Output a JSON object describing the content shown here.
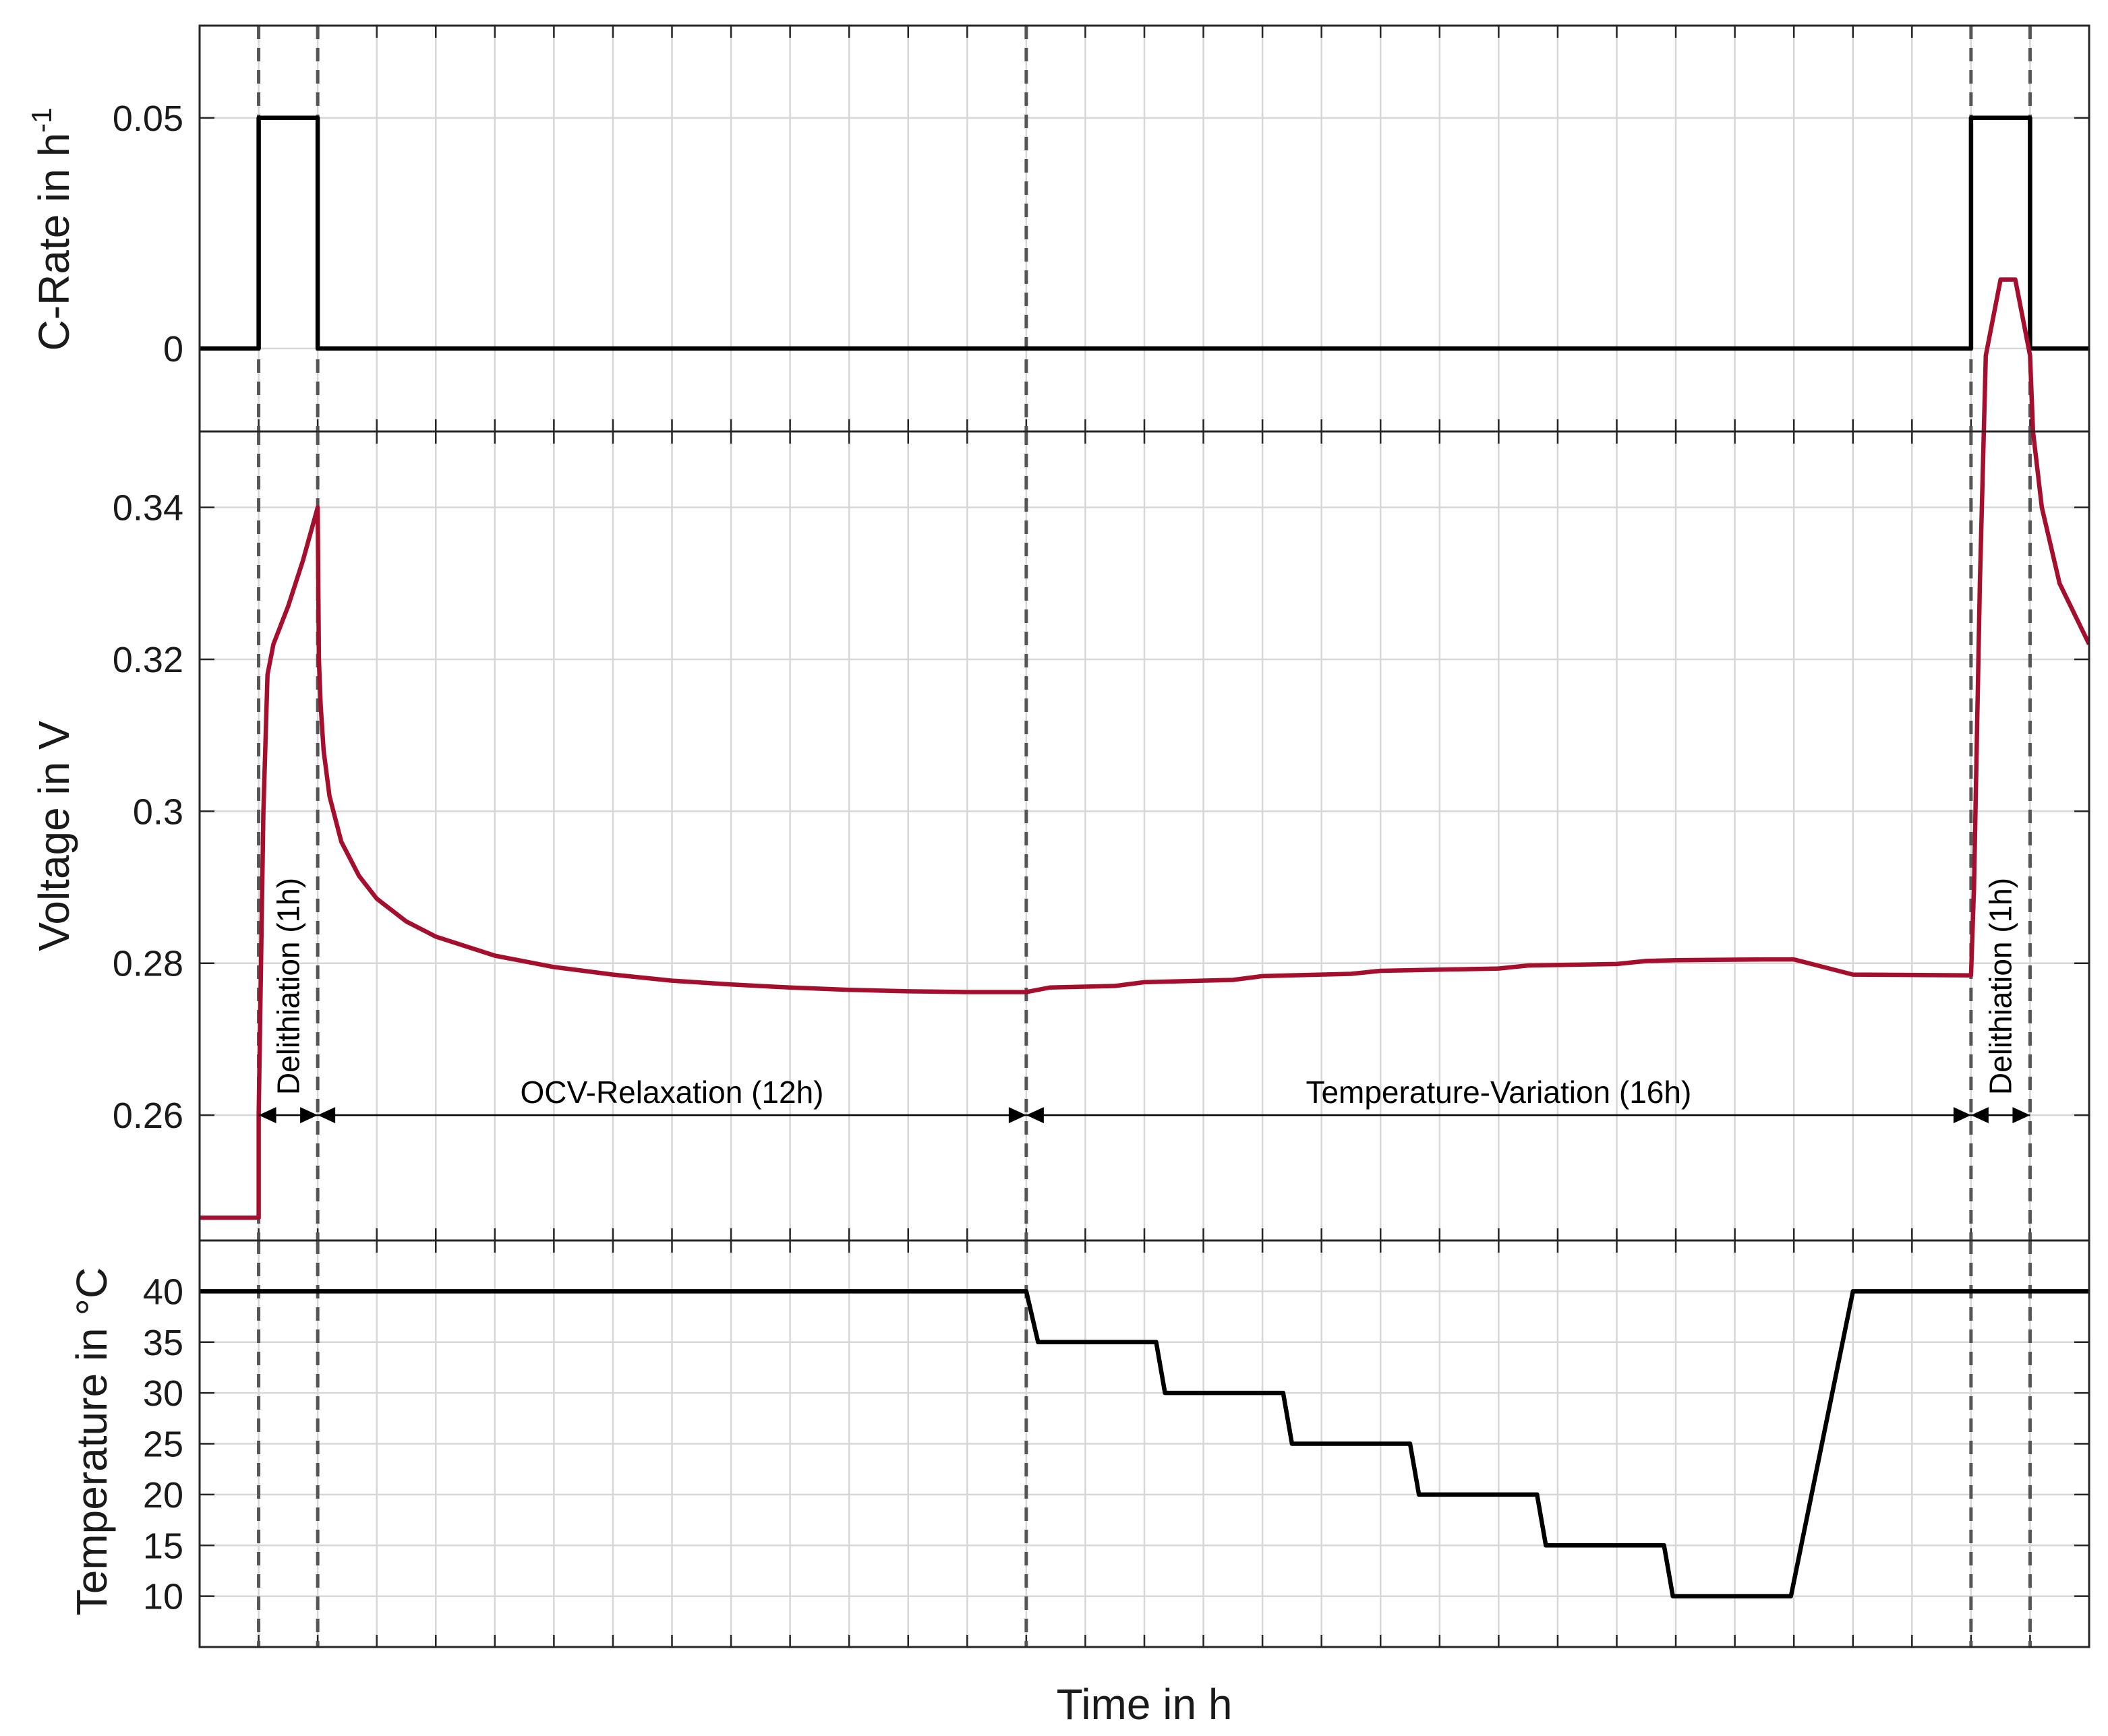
{
  "chart_data": {
    "type": "line",
    "layout": "three vertically stacked panels sharing the time axis",
    "xlabel": "Time in h",
    "xlim": [
      -1,
      31
    ],
    "x_tick_labels_shown": false,
    "grid": true,
    "phase_boundaries": [
      0,
      1,
      13,
      29,
      30
    ],
    "panels": [
      {
        "id": "crate",
        "ylabel": "C-Rate in h",
        "ylabel_superscript": "-1",
        "ylim": [
          -0.018,
          0.07
        ],
        "yticks": [
          0,
          0.05
        ],
        "ytick_labels": [
          "0",
          "0.05"
        ],
        "series": [
          {
            "color": "#000000",
            "x": [
              -1,
              0,
              0,
              1,
              1,
              29,
              29,
              30,
              30,
              31
            ],
            "y": [
              0,
              0,
              0.05,
              0.05,
              0,
              0,
              0.05,
              0.05,
              0,
              0
            ]
          }
        ]
      },
      {
        "id": "voltage",
        "ylabel": "Voltage in V",
        "ylim": [
          0.2435,
          0.35
        ],
        "yticks": [
          0.26,
          0.28,
          0.3,
          0.32,
          0.34
        ],
        "ytick_labels": [
          "0.26",
          "0.28",
          "0.3",
          "0.32",
          "0.34"
        ],
        "series": [
          {
            "color": "#a50f2d",
            "x": [
              -1,
              0,
              0,
              0.08,
              0.15,
              0.25,
              0.5,
              0.75,
              1,
              1.02,
              1.05,
              1.1,
              1.2,
              1.4,
              1.7,
              2,
              2.5,
              3,
              4,
              5,
              6,
              7,
              8,
              9,
              10,
              11,
              12,
              13,
              13.4,
              14.5,
              15,
              16.5,
              17,
              18.5,
              19,
              21,
              21.5,
              23,
              23.5,
              24,
              25.5,
              26,
              26.5,
              27,
              29,
              29.05,
              29.15,
              29.25,
              29.5,
              29.75,
              30,
              30.05,
              30.2,
              30.5,
              31
            ],
            "y": [
              0.2465,
              0.2465,
              0.26,
              0.3,
              0.318,
              0.322,
              0.327,
              0.333,
              0.34,
              0.32,
              0.314,
              0.308,
              0.302,
              0.296,
              0.2915,
              0.2885,
              0.2855,
              0.2835,
              0.281,
              0.2795,
              0.2785,
              0.2777,
              0.2772,
              0.2768,
              0.2765,
              0.2763,
              0.2762,
              0.2762,
              0.2768,
              0.277,
              0.2775,
              0.2778,
              0.2783,
              0.2786,
              0.279,
              0.2793,
              0.2797,
              0.2799,
              0.2803,
              0.2804,
              0.2805,
              0.2805,
              0.2795,
              0.2785,
              0.2784,
              0.29,
              0.33,
              0.36,
              0.37,
              0.37,
              0.36,
              0.35,
              0.34,
              0.33,
              0.322
            ]
          }
        ],
        "annotations": [
          {
            "text": "Delithiation (1h)",
            "x_start": 0,
            "x_end": 1,
            "y": 0.26,
            "orientation": "vertical"
          },
          {
            "text": "OCV-Relaxation (12h)",
            "x_start": 1,
            "x_end": 13,
            "y": 0.26,
            "orientation": "horizontal"
          },
          {
            "text": "Temperature-Variation (16h)",
            "x_start": 13,
            "x_end": 29,
            "y": 0.26,
            "orientation": "horizontal"
          },
          {
            "text": "Delithiation (1h)",
            "x_start": 29,
            "x_end": 30,
            "y": 0.26,
            "orientation": "vertical"
          }
        ]
      },
      {
        "id": "temperature",
        "ylabel": "Temperature in °C",
        "ylim": [
          5,
          45
        ],
        "yticks": [
          10,
          15,
          20,
          25,
          30,
          35,
          40
        ],
        "ytick_labels": [
          "10",
          "15",
          "20",
          "25",
          "30",
          "35",
          "40"
        ],
        "series": [
          {
            "color": "#000000",
            "x": [
              -1,
              13,
              13.2,
              15.2,
              15.35,
              17.35,
              17.5,
              19.5,
              19.65,
              21.65,
              21.8,
              23.8,
              23.95,
              25.95,
              27,
              31
            ],
            "y": [
              40,
              40,
              35,
              35,
              30,
              30,
              25,
              25,
              20,
              20,
              15,
              15,
              10,
              10,
              40,
              40
            ]
          }
        ]
      }
    ]
  }
}
